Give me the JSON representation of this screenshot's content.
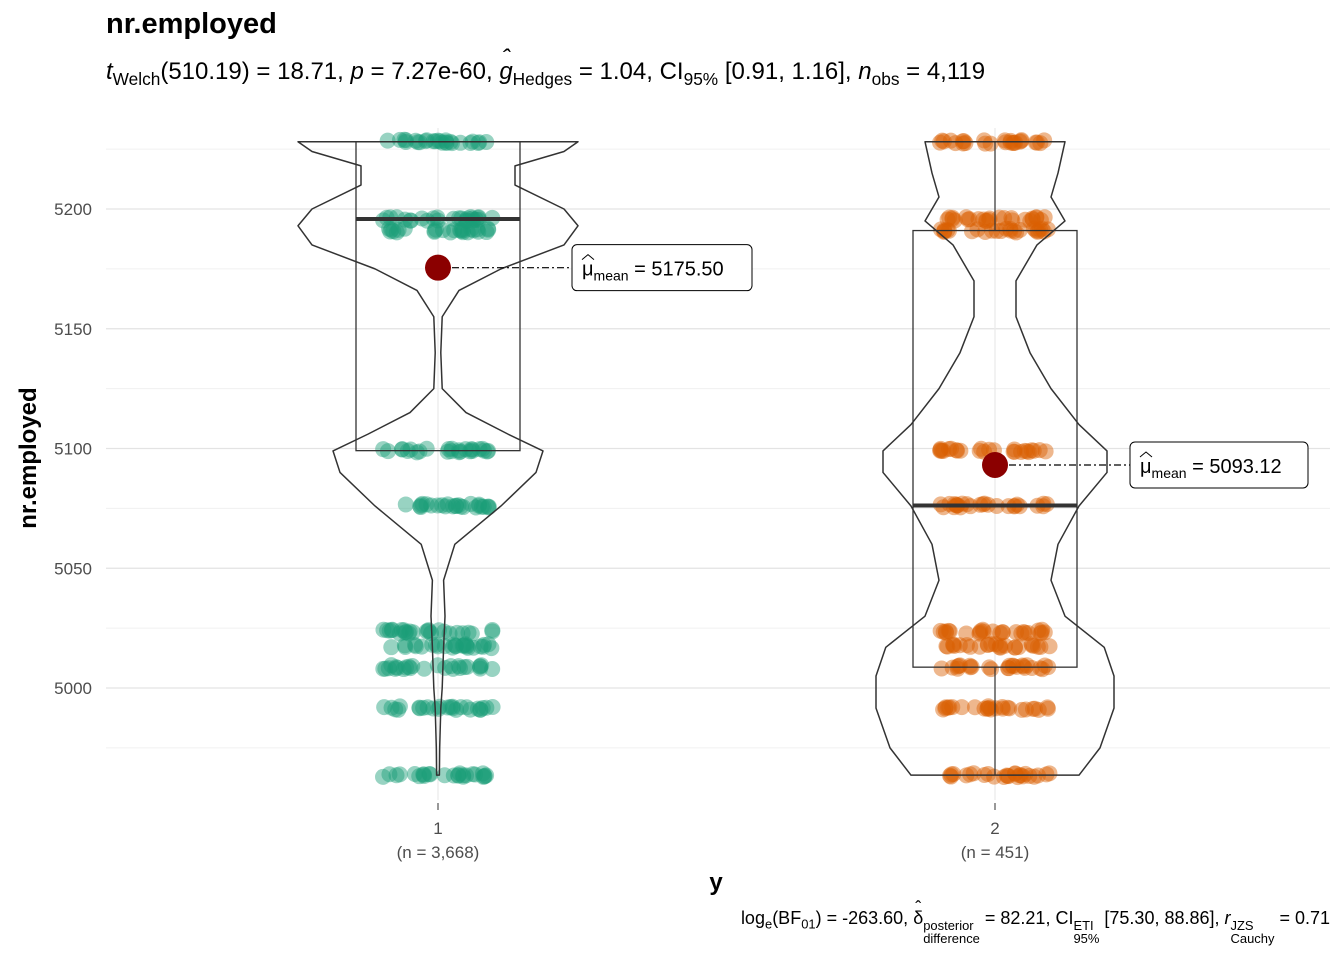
{
  "title": "nr.employed",
  "subtitle": {
    "t_label": "t",
    "t_sub": "Welch",
    "df": "(510.19)",
    "t_value": "= 18.71,",
    "p_label": "p",
    "p_value": "= 7.27e-60,",
    "g_label": "g",
    "g_sub": "Hedges",
    "g_value": "= 1.04, CI",
    "ci_sub": "95%",
    "ci_value": "[0.91, 1.16],",
    "n_label": "n",
    "n_sub": "obs",
    "n_value": "= 4,119"
  },
  "caption": {
    "log_label": "log",
    "log_sub": "e",
    "bf_open": "(BF",
    "bf_sub": "01",
    "bf_value": ") = -263.60,",
    "delta": "δ",
    "delta_sup": "posterior",
    "delta_sub": "difference",
    "delta_value": "= 82.21, CI",
    "ci_sup": "ETI",
    "ci_sub": "95%",
    "ci_value": "[75.30, 88.86],",
    "r_label": "r",
    "r_sup": "JZS",
    "r_sub": "Cauchy",
    "r_value": "= 0.71"
  },
  "chart_data": {
    "type": "box",
    "title": "nr.employed",
    "xlabel": "y",
    "ylabel": "nr.employed",
    "ylim": [
      4955,
      5231
    ],
    "yticks": [
      5000,
      5050,
      5100,
      5150,
      5200
    ],
    "grid": true,
    "categories": [
      "1",
      "2"
    ],
    "category_counts": [
      "(n = 3,668)",
      "(n = 451)"
    ],
    "colors": [
      "#1b9e77",
      "#d95f02"
    ],
    "mean_color": "#8b0000",
    "groups": [
      {
        "name": "1",
        "box": {
          "lower": 5099.1,
          "q1": 5099.1,
          "median": 5195.8,
          "q3": 5228.1,
          "upper": 5228.1
        },
        "mean": 5175.5,
        "mean_label": "= 5175.50",
        "mean_symbol": "μ",
        "mean_sub": "mean",
        "point_levels": [
          4963.6,
          4991.6,
          5008.7,
          5017.5,
          5023.5,
          5076.2,
          5099.1,
          5191.0,
          5195.8,
          5228.1
        ],
        "violin": [
          [
            4963.6,
            0.01
          ],
          [
            4975,
            0.012
          ],
          [
            4991.6,
            0.02
          ],
          [
            5000,
            0.03
          ],
          [
            5017,
            0.04
          ],
          [
            5030,
            0.05
          ],
          [
            5045,
            0.04
          ],
          [
            5060,
            0.12
          ],
          [
            5076,
            0.45
          ],
          [
            5090,
            0.7
          ],
          [
            5099,
            0.75
          ],
          [
            5106,
            0.5
          ],
          [
            5115,
            0.2
          ],
          [
            5125,
            0.03
          ],
          [
            5140,
            0.02
          ],
          [
            5155,
            0.03
          ],
          [
            5166,
            0.15
          ],
          [
            5175,
            0.45
          ],
          [
            5185,
            0.9
          ],
          [
            5193,
            1.0
          ],
          [
            5200,
            0.9
          ],
          [
            5210,
            0.55
          ],
          [
            5218,
            0.55
          ],
          [
            5224,
            0.9
          ],
          [
            5228.1,
            1.0
          ]
        ]
      },
      {
        "name": "2",
        "box": {
          "lower": 4963.6,
          "q1": 5008.7,
          "median": 5076.2,
          "q3": 5191.0,
          "upper": 5228.1
        },
        "mean": 5093.12,
        "mean_label": "= 5093.12",
        "mean_symbol": "μ",
        "mean_sub": "mean",
        "point_levels": [
          4963.6,
          4991.6,
          5008.7,
          5017.5,
          5023.5,
          5076.2,
          5099.1,
          5191.0,
          5195.8,
          5228.1
        ],
        "violin": [
          [
            4963.6,
            0.6
          ],
          [
            4975,
            0.75
          ],
          [
            4991.6,
            0.85
          ],
          [
            5005,
            0.85
          ],
          [
            5017,
            0.78
          ],
          [
            5030,
            0.5
          ],
          [
            5045,
            0.4
          ],
          [
            5060,
            0.45
          ],
          [
            5076,
            0.6
          ],
          [
            5090,
            0.8
          ],
          [
            5099,
            0.8
          ],
          [
            5110,
            0.6
          ],
          [
            5125,
            0.4
          ],
          [
            5140,
            0.25
          ],
          [
            5155,
            0.15
          ],
          [
            5170,
            0.15
          ],
          [
            5185,
            0.3
          ],
          [
            5195,
            0.5
          ],
          [
            5205,
            0.4
          ],
          [
            5215,
            0.45
          ],
          [
            5228.1,
            0.5
          ]
        ]
      }
    ]
  }
}
